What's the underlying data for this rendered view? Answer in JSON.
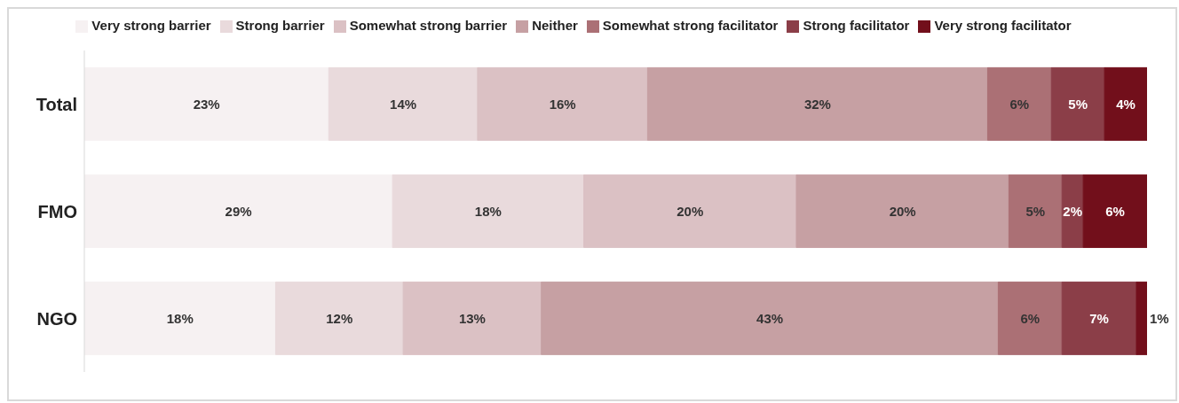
{
  "chart_data": {
    "type": "bar",
    "orientation": "horizontal",
    "stacked": true,
    "tick_labels": "y",
    "legend": "top",
    "categories": [
      "Total",
      "FMO",
      "NGO"
    ],
    "series": [
      {
        "name": "Very strong barrier",
        "color": "#f6f1f2",
        "values": [
          23,
          29,
          18
        ],
        "value_labels": [
          "23%",
          "29%",
          "18%"
        ]
      },
      {
        "name": "Strong barrier",
        "color": "#e9dadc",
        "values": [
          14,
          18,
          12
        ],
        "value_labels": [
          "14%",
          "18%",
          "12%"
        ]
      },
      {
        "name": "Somewhat strong barrier",
        "color": "#dbc1c4",
        "values": [
          16,
          20,
          13
        ],
        "value_labels": [
          "16%",
          "20%",
          "13%"
        ]
      },
      {
        "name": "Neither",
        "color": "#c6a0a3",
        "values": [
          32,
          20,
          43
        ],
        "value_labels": [
          "32%",
          "20%",
          "43%"
        ]
      },
      {
        "name": "Somewhat strong facilitator",
        "color": "#ab7075",
        "values": [
          6,
          5,
          6
        ],
        "value_labels": [
          "6%",
          "5%",
          "6%"
        ]
      },
      {
        "name": "Strong facilitator",
        "color": "#8b3e48",
        "values": [
          5,
          2,
          7
        ],
        "value_labels": [
          "5%",
          "2%",
          "7%"
        ]
      },
      {
        "name": "Very strong facilitator",
        "color": "#720f1b",
        "values": [
          4,
          6,
          1
        ],
        "value_labels": [
          "4%",
          "6%",
          "1%"
        ]
      }
    ]
  }
}
